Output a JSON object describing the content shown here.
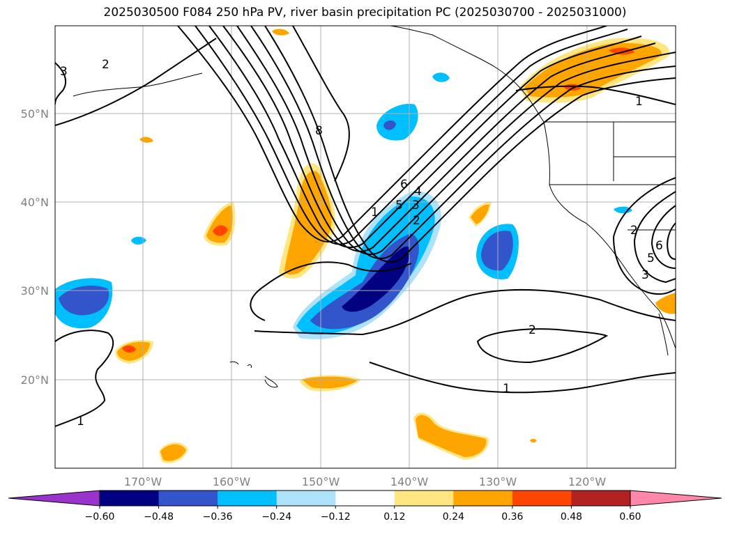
{
  "title": "2025030500 F084 250 hPa PV, river basin precipitation PC (2025030700 - 2025031000)",
  "lon_ticks": [
    "170°W",
    "160°W",
    "150°W",
    "140°W",
    "130°W",
    "120°W"
  ],
  "lat_ticks": [
    "50°N",
    "40°N",
    "30°N",
    "20°N"
  ],
  "colorbar": {
    "ticks": [
      "−0.60",
      "−0.48",
      "−0.36",
      "−0.24",
      "−0.12",
      "0.12",
      "0.24",
      "0.36",
      "0.48",
      "0.60"
    ],
    "colors": [
      "#9933cc",
      "#000080",
      "#3355cc",
      "#00bfff",
      "#aee2fa",
      "#ffffff",
      "#ffe680",
      "#ffa500",
      "#ff4500",
      "#b22222",
      "#ff88aa"
    ]
  },
  "contour_labels": [
    "8",
    "6",
    "5",
    "4",
    "3",
    "2",
    "1",
    "3",
    "2",
    "1",
    "2",
    "1",
    "2",
    "5",
    "6",
    "1",
    "3"
  ]
}
